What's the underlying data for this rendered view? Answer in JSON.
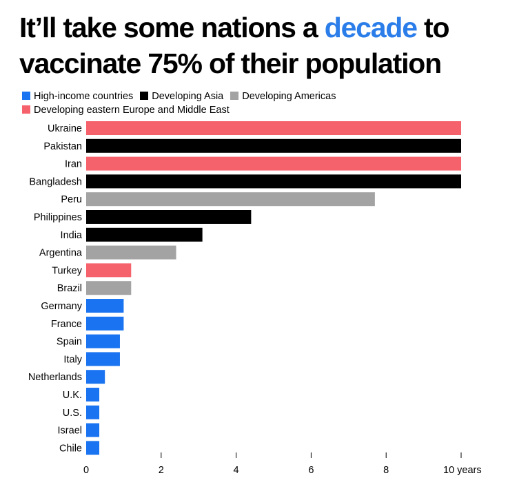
{
  "title": {
    "before": "It’ll take some nations a ",
    "highlight": "decade",
    "after": " to vaccinate 75% of their population"
  },
  "legend": [
    {
      "label": "High-income countries",
      "color": "#1a73f0"
    },
    {
      "label": "Developing Asia",
      "color": "#000000"
    },
    {
      "label": "Developing Americas",
      "color": "#a3a3a3"
    },
    {
      "label": "Developing eastern Europe and Middle East",
      "color": "#f6626c"
    }
  ],
  "chart_data": {
    "type": "bar",
    "orientation": "horizontal",
    "categories": [
      "Ukraine",
      "Pakistan",
      "Iran",
      "Bangladesh",
      "Peru",
      "Philippines",
      "India",
      "Argentina",
      "Turkey",
      "Brazil",
      "Germany",
      "France",
      "Spain",
      "Italy",
      "Netherlands",
      "U.K.",
      "U.S.",
      "Israel",
      "Chile"
    ],
    "values": [
      10,
      10,
      10,
      10,
      7.7,
      4.4,
      3.1,
      2.4,
      1.2,
      1.2,
      1.0,
      1.0,
      0.9,
      0.9,
      0.5,
      0.35,
      0.35,
      0.35,
      0.35
    ],
    "groups": [
      "Developing eastern Europe and Middle East",
      "Developing Asia",
      "Developing eastern Europe and Middle East",
      "Developing Asia",
      "Developing Americas",
      "Developing Asia",
      "Developing Asia",
      "Developing Americas",
      "Developing eastern Europe and Middle East",
      "Developing Americas",
      "High-income countries",
      "High-income countries",
      "High-income countries",
      "High-income countries",
      "High-income countries",
      "High-income countries",
      "High-income countries",
      "High-income countries",
      "High-income countries"
    ],
    "xlim": [
      0,
      10
    ],
    "xticks": [
      0,
      2,
      4,
      6,
      8,
      10
    ],
    "xtick_labels": [
      "0",
      "2",
      "4",
      "6",
      "8",
      "10 years"
    ],
    "grid": false,
    "legend_position": "top"
  }
}
